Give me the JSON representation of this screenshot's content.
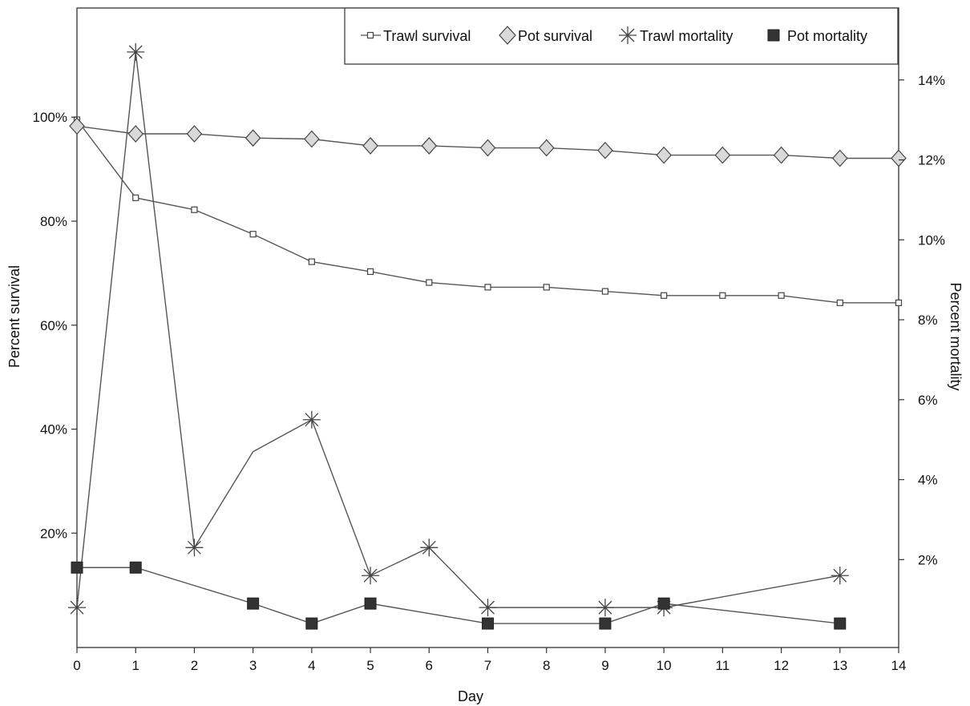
{
  "chart_data": {
    "type": "line",
    "title": "",
    "xlabel": "Day",
    "ylabel_left": "Percent survival",
    "ylabel_right": "Percent mortality",
    "x_ticks": [
      "0",
      "1",
      "2",
      "3",
      "4",
      "5",
      "6",
      "7",
      "8",
      "9",
      "10",
      "11",
      "12",
      "13",
      "14"
    ],
    "xlim": [
      0,
      14
    ],
    "ylim_left": [
      -2,
      121
    ],
    "ylim_right": [
      -0.2,
      15.8
    ],
    "y_ticks_left": [
      "20%",
      "40%",
      "60%",
      "80%",
      "100%"
    ],
    "y_ticks_right": [
      "2%",
      "4%",
      "6%",
      "8%",
      "10%",
      "12%",
      "14%"
    ],
    "grid": false,
    "legend_position": "top-right",
    "colors": {
      "line": "#555555",
      "marker_fill_open": "#ffffff",
      "diamond_fill": "#d9d9d9",
      "pot_mortality_fill": "#333333"
    },
    "series": [
      {
        "name": "Trawl survival",
        "axis": "left",
        "marker": "open-square",
        "x": [
          0,
          1,
          2,
          3,
          4,
          5,
          6,
          7,
          8,
          9,
          10,
          11,
          12,
          13,
          14
        ],
        "values": [
          99.5,
          84.5,
          82.2,
          77.5,
          72.2,
          70.3,
          68.2,
          67.3,
          67.3,
          66.5,
          65.7,
          65.7,
          65.7,
          64.3,
          64.3
        ]
      },
      {
        "name": "Pot survival",
        "axis": "left",
        "marker": "diamond",
        "x": [
          0,
          1,
          2,
          3,
          4,
          5,
          6,
          7,
          8,
          9,
          10,
          11,
          12,
          13,
          14
        ],
        "values": [
          98.3,
          96.8,
          96.8,
          96.0,
          95.8,
          94.5,
          94.5,
          94.1,
          94.1,
          93.6,
          92.7,
          92.7,
          92.7,
          92.1,
          92.1
        ]
      },
      {
        "name": "Trawl mortality",
        "axis": "right",
        "marker": "asterisk",
        "x": [
          0,
          1,
          2,
          4,
          5,
          6,
          7,
          9,
          10,
          13
        ],
        "values": [
          0.8,
          14.7,
          2.3,
          5.5,
          1.6,
          2.3,
          0.8,
          0.8,
          0.8,
          1.6
        ],
        "x_full": [
          0,
          1,
          2,
          3,
          4,
          5,
          6,
          7,
          9,
          10,
          13
        ],
        "values_full": [
          0.8,
          14.7,
          2.3,
          4.7,
          5.5,
          1.6,
          2.3,
          0.8,
          0.8,
          0.8,
          1.6
        ]
      },
      {
        "name": "Pot mortality",
        "axis": "right",
        "marker": "filled-square",
        "x": [
          0,
          1,
          3,
          4,
          5,
          7,
          9,
          10,
          13
        ],
        "values": [
          1.8,
          1.8,
          0.9,
          0.4,
          0.9,
          0.4,
          0.4,
          0.9,
          0.4
        ]
      }
    ]
  }
}
